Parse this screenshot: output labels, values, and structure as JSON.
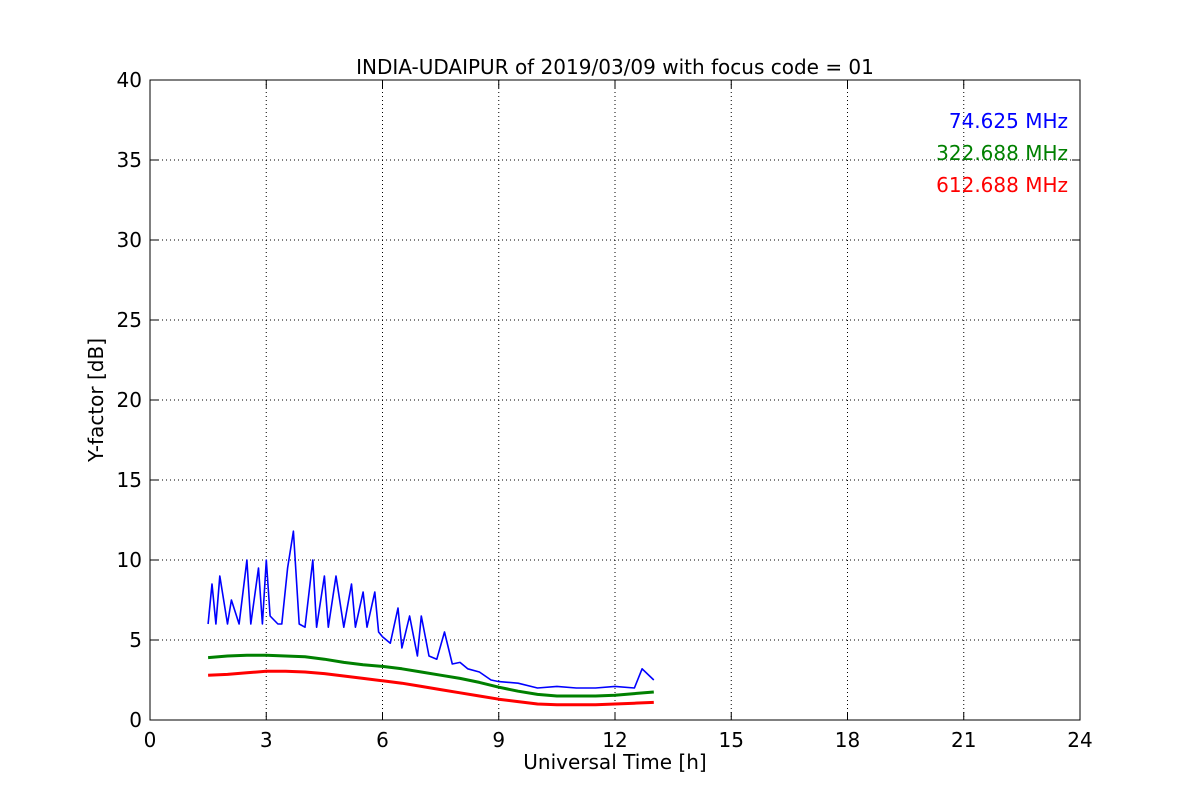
{
  "chart_data": {
    "type": "line",
    "title": "INDIA-UDAIPUR of 2019/03/09 with focus code = 01",
    "xlabel": "Universal Time [h]",
    "ylabel": "Y-factor [dB]",
    "xlim": [
      0,
      24
    ],
    "ylim": [
      0,
      40
    ],
    "xticks": [
      0,
      3,
      6,
      9,
      12,
      15,
      18,
      21,
      24
    ],
    "yticks": [
      0,
      5,
      10,
      15,
      20,
      25,
      30,
      35,
      40
    ],
    "grid": true,
    "legend_position": "top-right",
    "series": [
      {
        "name": "74.625 MHz",
        "color": "#0000ff",
        "x": [
          1.5,
          1.6,
          1.7,
          1.8,
          2.0,
          2.1,
          2.3,
          2.5,
          2.6,
          2.8,
          2.9,
          3.0,
          3.1,
          3.3,
          3.4,
          3.55,
          3.7,
          3.85,
          4.0,
          4.2,
          4.3,
          4.5,
          4.6,
          4.8,
          5.0,
          5.2,
          5.3,
          5.5,
          5.6,
          5.8,
          5.9,
          6.0,
          6.2,
          6.4,
          6.5,
          6.7,
          6.9,
          7.0,
          7.2,
          7.4,
          7.6,
          7.8,
          8.0,
          8.2,
          8.5,
          8.8,
          9.0,
          9.5,
          10.0,
          10.5,
          11.0,
          11.5,
          12.0,
          12.5,
          12.7,
          13.0
        ],
        "y": [
          6.0,
          8.5,
          6.0,
          9.0,
          6.0,
          7.5,
          6.0,
          10.0,
          6.0,
          9.5,
          6.0,
          10.0,
          6.5,
          6.0,
          6.0,
          9.5,
          11.8,
          6.0,
          5.8,
          10.0,
          5.8,
          9.0,
          5.8,
          9.0,
          5.8,
          8.5,
          5.8,
          8.0,
          5.8,
          8.0,
          5.5,
          5.2,
          4.8,
          7.0,
          4.5,
          6.5,
          4.0,
          6.5,
          4.0,
          3.8,
          5.5,
          3.5,
          3.6,
          3.2,
          3.0,
          2.5,
          2.4,
          2.3,
          2.0,
          2.1,
          2.0,
          2.0,
          2.1,
          2.0,
          3.2,
          2.5
        ]
      },
      {
        "name": "322.688 MHz",
        "color": "#008000",
        "x": [
          1.5,
          2.0,
          2.5,
          3.0,
          3.5,
          4.0,
          4.5,
          5.0,
          5.5,
          6.0,
          6.5,
          7.0,
          7.5,
          8.0,
          8.5,
          9.0,
          9.5,
          10.0,
          10.5,
          11.0,
          11.5,
          12.0,
          12.5,
          13.0
        ],
        "y": [
          3.9,
          4.0,
          4.05,
          4.05,
          4.0,
          3.95,
          3.8,
          3.6,
          3.45,
          3.35,
          3.2,
          3.0,
          2.8,
          2.6,
          2.35,
          2.05,
          1.8,
          1.6,
          1.5,
          1.5,
          1.5,
          1.55,
          1.65,
          1.75
        ]
      },
      {
        "name": "612.688 MHz",
        "color": "#ff0000",
        "x": [
          1.5,
          2.0,
          2.5,
          3.0,
          3.5,
          4.0,
          4.5,
          5.0,
          5.5,
          6.0,
          6.5,
          7.0,
          7.5,
          8.0,
          8.5,
          9.0,
          9.5,
          10.0,
          10.5,
          11.0,
          11.5,
          12.0,
          12.5,
          13.0
        ],
        "y": [
          2.8,
          2.85,
          2.95,
          3.05,
          3.05,
          3.0,
          2.9,
          2.75,
          2.6,
          2.45,
          2.3,
          2.1,
          1.9,
          1.7,
          1.5,
          1.3,
          1.15,
          1.0,
          0.95,
          0.95,
          0.95,
          1.0,
          1.05,
          1.1
        ]
      }
    ]
  }
}
